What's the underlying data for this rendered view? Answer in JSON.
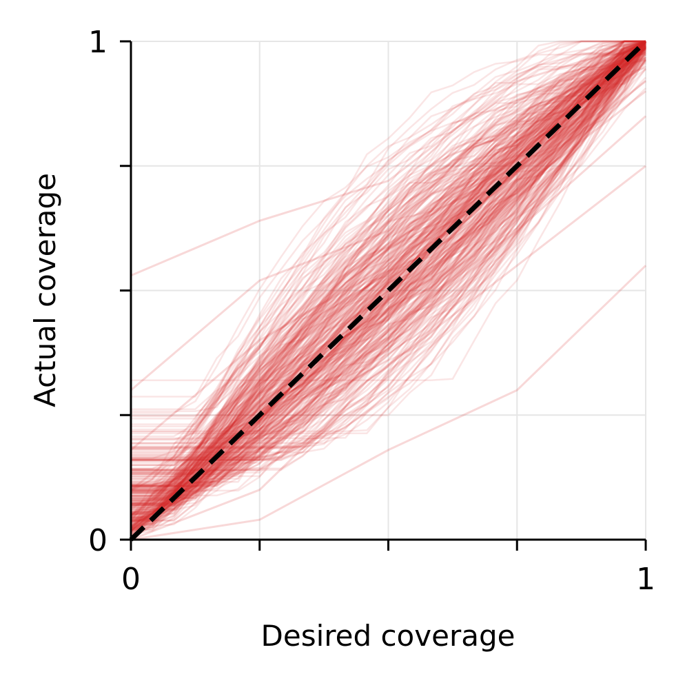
{
  "chart_data": {
    "type": "line",
    "xlabel": "Desired coverage",
    "ylabel": "Actual coverage",
    "xlim": [
      0,
      1
    ],
    "ylim": [
      0,
      1
    ],
    "x_ticks": [
      0,
      0.25,
      0.5,
      0.75,
      1
    ],
    "y_ticks": [
      0,
      0.25,
      0.5,
      0.75,
      1
    ],
    "x_tick_labels": [
      "0",
      "",
      "",
      "",
      "1"
    ],
    "y_tick_labels": [
      "0",
      "",
      "",
      "",
      "1"
    ],
    "grid": true,
    "spines": "left-bottom",
    "series_color": "#d62728",
    "series_opacity": 0.12,
    "series_note": "≈300 overlapping calibration curves clustered around the diagonal",
    "representative_series": [
      {
        "x": [
          0,
          0.25,
          0.5,
          0.75,
          1
        ],
        "y": [
          0.53,
          0.64,
          0.72,
          0.92,
          1.0
        ]
      },
      {
        "x": [
          0,
          0.25,
          0.5,
          0.75,
          1
        ],
        "y": [
          0.3,
          0.52,
          0.62,
          0.88,
          1.0
        ]
      },
      {
        "x": [
          0,
          0.25,
          0.5,
          0.75,
          1
        ],
        "y": [
          0.18,
          0.4,
          0.55,
          0.8,
          0.95
        ]
      },
      {
        "x": [
          0,
          0.25,
          0.5,
          0.75,
          1
        ],
        "y": [
          0.1,
          0.3,
          0.5,
          0.72,
          0.92
        ]
      },
      {
        "x": [
          0,
          0.25,
          0.5,
          0.75,
          1
        ],
        "y": [
          0.05,
          0.25,
          0.48,
          0.7,
          0.9
        ]
      },
      {
        "x": [
          0,
          0.25,
          0.5,
          0.75,
          1
        ],
        "y": [
          0.0,
          0.18,
          0.42,
          0.62,
          0.85
        ]
      },
      {
        "x": [
          0,
          0.25,
          0.5,
          0.75,
          1
        ],
        "y": [
          0.0,
          0.1,
          0.35,
          0.55,
          0.75
        ]
      },
      {
        "x": [
          0,
          0.25,
          0.5,
          0.75,
          1
        ],
        "y": [
          0.0,
          0.04,
          0.18,
          0.3,
          0.55
        ]
      }
    ],
    "reference_line": {
      "x": [
        0,
        1
      ],
      "y": [
        0,
        1
      ],
      "style": "dashed",
      "color": "#000000"
    }
  }
}
